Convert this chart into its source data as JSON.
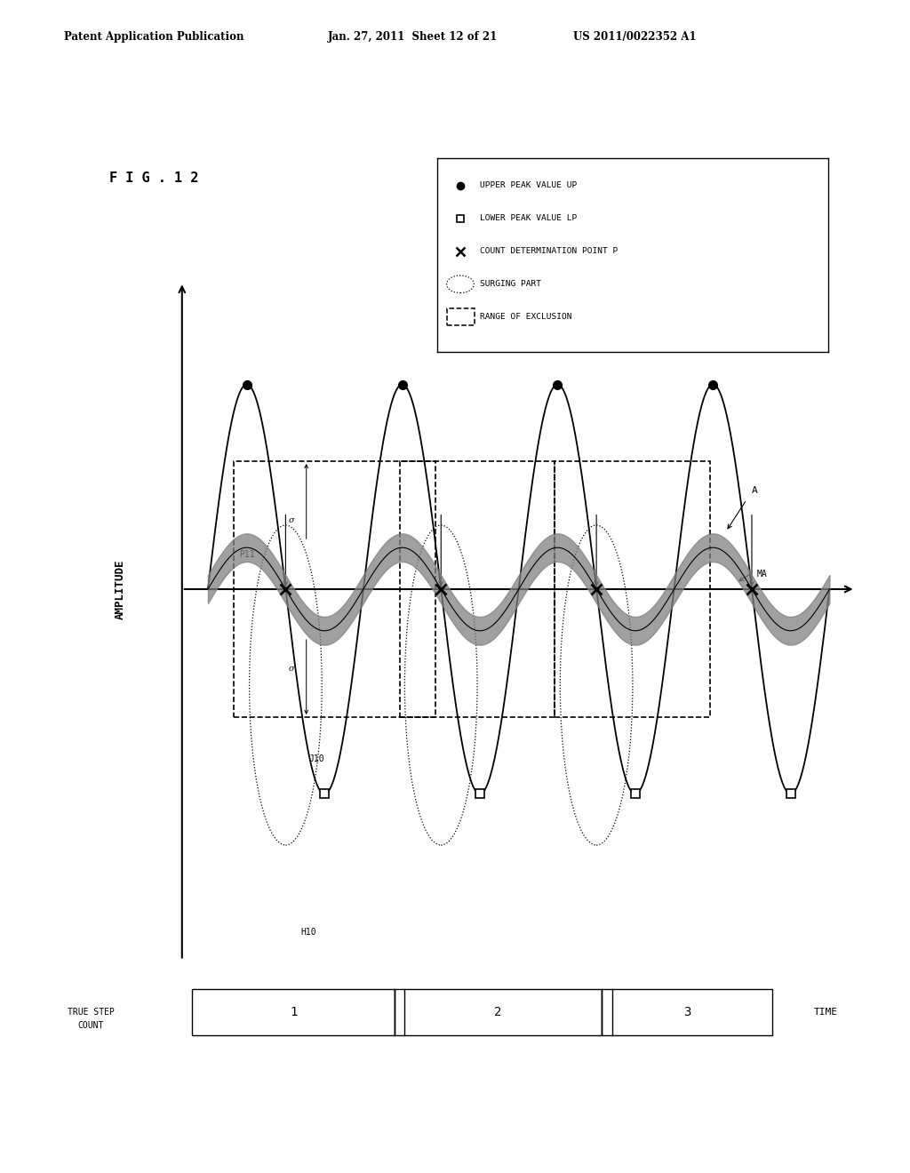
{
  "title": "F I G . 1 2",
  "header_left": "Patent Application Publication",
  "header_middle": "Jan. 27, 2011  Sheet 12 of 21",
  "header_right": "US 2011/0022352 A1",
  "ylabel": "AMPLITUDE",
  "step_labels": [
    "1",
    "2",
    "3"
  ],
  "bg_color": "#ffffff",
  "line_color": "#000000",
  "legend_entries": [
    "UPPER PEAK VALUE UP",
    "LOWER PEAK VALUE LP",
    "COUNT DETERMINATION POINT P",
    "SURGING PART",
    "RANGE OF EXCLUSION"
  ]
}
